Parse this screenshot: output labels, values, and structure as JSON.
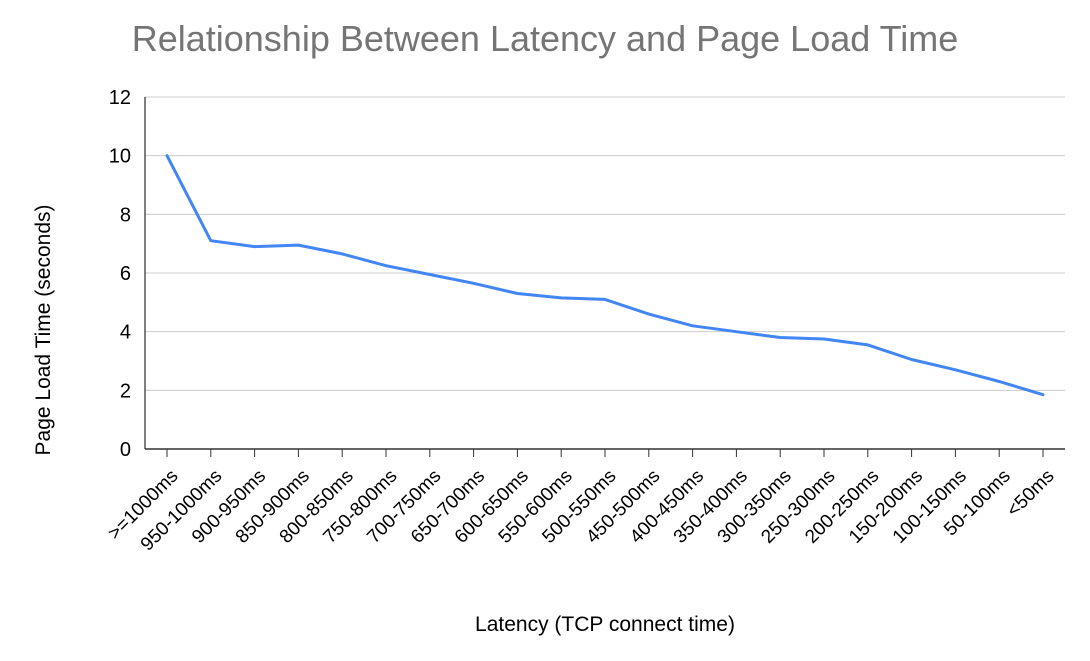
{
  "chart_data": {
    "type": "line",
    "title": "Relationship Between Latency and Page Load Time",
    "xlabel": "Latency (TCP connect time)",
    "ylabel": "Page Load Time (seconds)",
    "categories": [
      ">=1000ms",
      "950-1000ms",
      "900-950ms",
      "850-900ms",
      "800-850ms",
      "750-800ms",
      "700-750ms",
      "650-700ms",
      "600-650ms",
      "550-600ms",
      "500-550ms",
      "450-500ms",
      "400-450ms",
      "350-400ms",
      "300-350ms",
      "250-300ms",
      "200-250ms",
      "150-200ms",
      "100-150ms",
      "50-100ms",
      "<50ms"
    ],
    "series": [
      {
        "values": [
          10.0,
          7.1,
          6.9,
          6.95,
          6.65,
          6.25,
          5.95,
          5.65,
          5.3,
          5.15,
          5.1,
          4.6,
          4.2,
          4.0,
          3.8,
          3.75,
          3.55,
          3.05,
          2.7,
          2.3,
          1.85
        ]
      }
    ],
    "yticks": [
      0,
      2,
      4,
      6,
      8,
      10,
      12
    ],
    "ylim": [
      0,
      12
    ],
    "grid": true,
    "legend": "none",
    "line_color": "#4285f4"
  }
}
